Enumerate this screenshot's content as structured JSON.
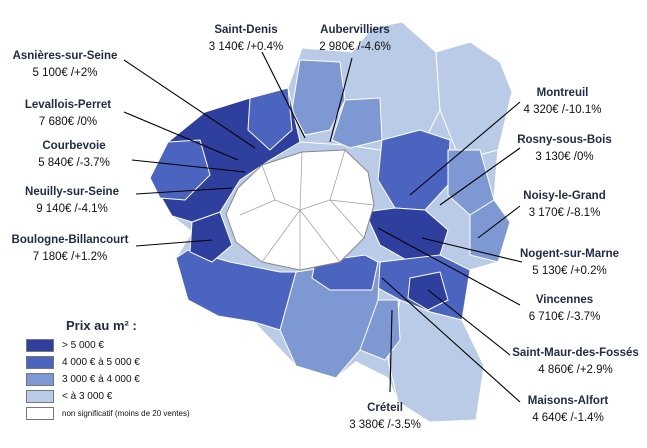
{
  "legend": {
    "title": "Prix au m² :",
    "items": [
      {
        "label": "> 5 000 €",
        "color": "#2e3f9e"
      },
      {
        "label": "4 000 € à 5 000 €",
        "color": "#4a64c0"
      },
      {
        "label": "3 000 € à 4 000 €",
        "color": "#7d98d2"
      },
      {
        "label": "< à 3 000 €",
        "color": "#b9cbe6"
      },
      {
        "label": "non significatif (moins de 20 ventes)",
        "color": "#ffffff"
      }
    ]
  },
  "cities": [
    {
      "name": "Saint-Denis",
      "price": "3 140€ /+0.4%"
    },
    {
      "name": "Aubervilliers",
      "price": "2 980€ /-4.6%"
    },
    {
      "name": "Asnières-sur-Seine",
      "price": "5 100€ /+2%"
    },
    {
      "name": "Levallois-Perret",
      "price": "7 680€ /0%"
    },
    {
      "name": "Courbevoie",
      "price": "5 840€ /-3.7%"
    },
    {
      "name": "Neuilly-sur-Seine",
      "price": "9 140€ /-4.1%"
    },
    {
      "name": "Boulogne-Billancourt",
      "price": "7 180€ /+1.2%"
    },
    {
      "name": "Montreuil",
      "price": "4 320€ /-10.1%"
    },
    {
      "name": "Rosny-sous-Bois",
      "price": "3 130€ /0%"
    },
    {
      "name": "Noisy-le-Grand",
      "price": "3 170€ /-8.1%"
    },
    {
      "name": "Nogent-sur-Marne",
      "price": "5 130€ /+0.2%"
    },
    {
      "name": "Vincennes",
      "price": "6 710€ /-3.7%"
    },
    {
      "name": "Saint-Maur-des-Fossés",
      "price": "4 860€ /+2.9%"
    },
    {
      "name": "Maisons-Alfort",
      "price": "4 640€ /-1.4%"
    },
    {
      "name": "Créteil",
      "price": "3 380€ /-3.5%"
    }
  ]
}
